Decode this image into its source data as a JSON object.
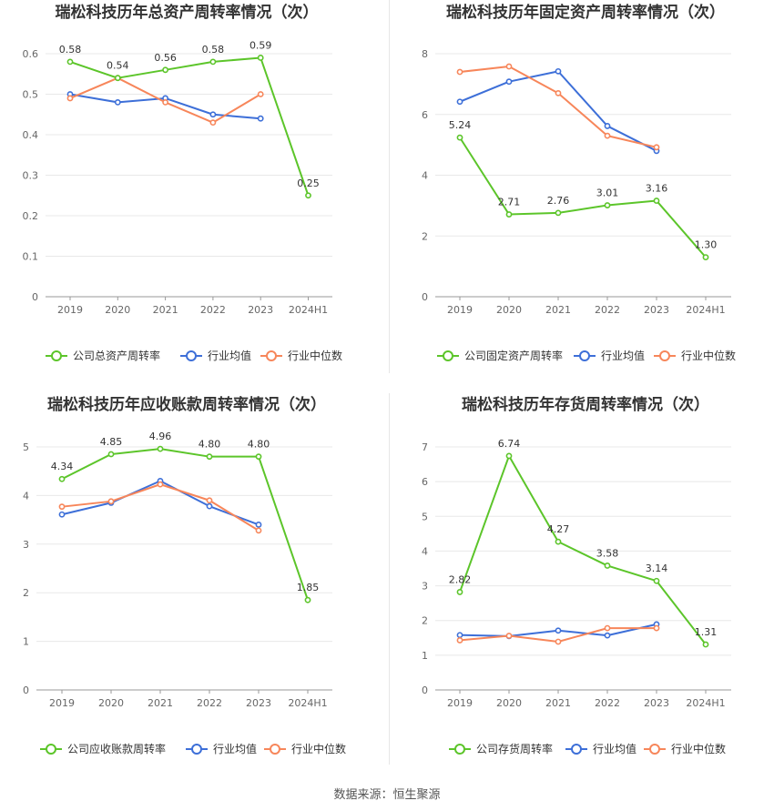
{
  "source": "数据来源：恒生聚源",
  "legend_labels": [
    "行业均值",
    "行业中位数"
  ],
  "colors": {
    "company": "#5cc52a",
    "industry_avg": "#3d6fd8",
    "industry_median": "#f7865a"
  },
  "chart_data": [
    {
      "type": "line",
      "title": "瑞松科技历年总资产周转率情况（次）",
      "categories": [
        "2019",
        "2020",
        "2021",
        "2022",
        "2023",
        "2024H1"
      ],
      "yticks": [
        "0",
        "0.1",
        "0.2",
        "0.3",
        "0.4",
        "0.5",
        "0.6"
      ],
      "ylim": [
        0,
        0.6
      ],
      "series": [
        {
          "name": "公司总资产周转率",
          "values": [
            0.58,
            0.54,
            0.56,
            0.58,
            0.59,
            0.25
          ],
          "labels": [
            "0.58",
            "0.54",
            "0.56",
            "0.58",
            "0.59",
            "0.25"
          ]
        },
        {
          "name": "行业均值",
          "values": [
            0.5,
            0.48,
            0.49,
            0.45,
            0.44,
            null
          ]
        },
        {
          "name": "行业中位数",
          "values": [
            0.49,
            0.54,
            0.48,
            0.43,
            0.5,
            null
          ]
        }
      ]
    },
    {
      "type": "line",
      "title": "瑞松科技历年固定资产周转率情况（次）",
      "categories": [
        "2019",
        "2020",
        "2021",
        "2022",
        "2023",
        "2024H1"
      ],
      "yticks": [
        "0",
        "2",
        "4",
        "6",
        "8"
      ],
      "ylim": [
        0,
        8
      ],
      "series": [
        {
          "name": "公司固定资产周转率",
          "values": [
            5.24,
            2.71,
            2.76,
            3.01,
            3.16,
            1.3
          ],
          "labels": [
            "5.24",
            "2.71",
            "2.76",
            "3.01",
            "3.16",
            "1.30"
          ]
        },
        {
          "name": "行业均值",
          "values": [
            6.42,
            7.08,
            7.42,
            5.62,
            4.8,
            null
          ]
        },
        {
          "name": "行业中位数",
          "values": [
            7.4,
            7.58,
            6.7,
            5.3,
            4.92,
            null
          ]
        }
      ]
    },
    {
      "type": "line",
      "title": "瑞松科技历年应收账款周转率情况（次）",
      "categories": [
        "2019",
        "2020",
        "2021",
        "2022",
        "2023",
        "2024H1"
      ],
      "yticks": [
        "0",
        "1",
        "2",
        "3",
        "4",
        "5"
      ],
      "ylim": [
        0,
        5
      ],
      "series": [
        {
          "name": "公司应收账款周转率",
          "values": [
            4.34,
            4.85,
            4.96,
            4.8,
            4.8,
            1.85
          ],
          "labels": [
            "4.34",
            "4.85",
            "4.96",
            "4.80",
            "4.80",
            "1.85"
          ]
        },
        {
          "name": "行业均值",
          "values": [
            3.61,
            3.85,
            4.3,
            3.78,
            3.4,
            null
          ]
        },
        {
          "name": "行业中位数",
          "values": [
            3.77,
            3.88,
            4.23,
            3.9,
            3.28,
            null
          ]
        }
      ]
    },
    {
      "type": "line",
      "title": "瑞松科技历年存货周转率情况（次）",
      "categories": [
        "2019",
        "2020",
        "2021",
        "2022",
        "2023",
        "2024H1"
      ],
      "yticks": [
        "0",
        "1",
        "2",
        "3",
        "4",
        "5",
        "6",
        "7"
      ],
      "ylim": [
        0,
        7
      ],
      "series": [
        {
          "name": "公司存货周转率",
          "values": [
            2.82,
            6.74,
            4.27,
            3.58,
            3.14,
            1.31
          ],
          "labels": [
            "2.82",
            "6.74",
            "4.27",
            "3.58",
            "3.14",
            "1.31"
          ]
        },
        {
          "name": "行业均值",
          "values": [
            1.58,
            1.55,
            1.71,
            1.57,
            1.89,
            null
          ]
        },
        {
          "name": "行业中位数",
          "values": [
            1.43,
            1.56,
            1.39,
            1.78,
            1.78,
            null
          ]
        }
      ]
    }
  ]
}
